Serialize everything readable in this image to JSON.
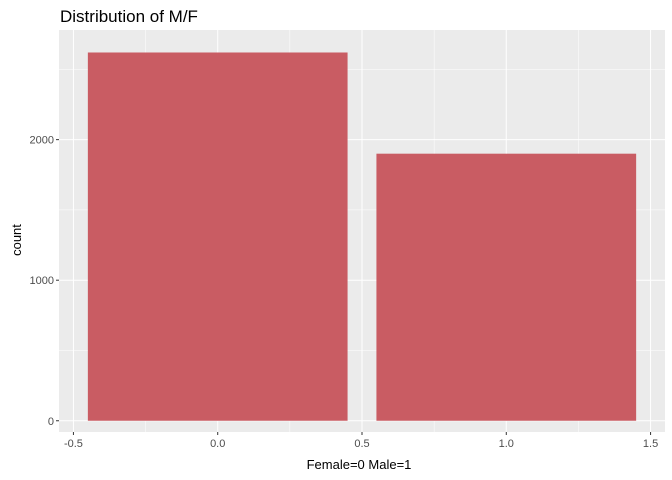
{
  "chart_data": {
    "type": "bar",
    "title": "Distribution of M/F",
    "xlabel": "Female=0 Male=1",
    "ylabel": "count",
    "bars": [
      {
        "x": 0,
        "value": 2620
      },
      {
        "x": 1,
        "value": 1900
      }
    ],
    "bar_width": 0.9,
    "xlim": [
      -0.55,
      1.55
    ],
    "ylim": [
      -80,
      2780
    ],
    "x_ticks": [
      {
        "value": -0.5,
        "label": "-0.5"
      },
      {
        "value": 0.0,
        "label": "0.0"
      },
      {
        "value": 0.5,
        "label": "0.5"
      },
      {
        "value": 1.0,
        "label": "1.0"
      },
      {
        "value": 1.5,
        "label": "1.5"
      }
    ],
    "y_ticks": [
      {
        "value": 0,
        "label": "0"
      },
      {
        "value": 1000,
        "label": "1000"
      },
      {
        "value": 2000,
        "label": "2000"
      }
    ],
    "grid": true,
    "legend": "none",
    "colors": {
      "bar": "#c95c63",
      "panel_background": "#ebebeb",
      "grid": "#ffffff",
      "tick_label": "#4d4d4d",
      "tick_mark": "#333333"
    }
  }
}
